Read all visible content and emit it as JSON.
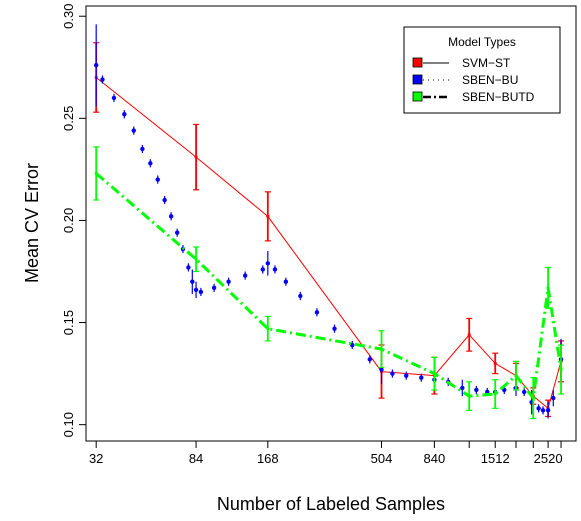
{
  "chart_data": {
    "type": "line",
    "xlabel": "Number of Labeled Samples",
    "ylabel": "Mean CV Error",
    "x_scale": "log",
    "xlim": [
      29,
      3300
    ],
    "ylim": [
      0.092,
      0.305
    ],
    "x_ticks": [
      32,
      84,
      168,
      504,
      840,
      1512,
      2520
    ],
    "x_minor_ticks": [
      1176,
      1848,
      2184,
      2856
    ],
    "y_ticks": [
      0.1,
      0.15,
      0.2,
      0.25,
      0.3
    ],
    "y_tick_labels": [
      "0.10",
      "0.15",
      "0.20",
      "0.25",
      "0.30"
    ],
    "grid": false,
    "legend": {
      "title": "Model Types",
      "position": "top-right",
      "entries": [
        "SVM−ST",
        "SBEN−BU",
        "SBEN−BUTD"
      ]
    },
    "series": [
      {
        "name": "SVM−ST",
        "color": "#ff0000",
        "marker_color": "#ff0000",
        "line": "solid",
        "x": [
          32,
          84,
          168,
          504,
          840,
          1176,
          1512,
          1848,
          2184,
          2520,
          2856
        ],
        "y": [
          0.27,
          0.231,
          0.202,
          0.126,
          0.124,
          0.144,
          0.13,
          0.124,
          0.114,
          0.108,
          0.131
        ],
        "err": [
          0.017,
          0.016,
          0.012,
          0.013,
          0.009,
          0.008,
          0.005,
          0.006,
          0.004,
          0.004,
          0.01
        ]
      },
      {
        "name": "SBEN−BU",
        "color": "#0000ff",
        "marker_color": "#0000ff",
        "line": "dotted",
        "x": [
          32,
          34,
          38,
          42,
          46,
          50,
          54,
          58,
          62,
          66,
          70,
          74,
          78,
          81,
          84,
          88,
          100,
          115,
          135,
          160,
          168,
          180,
          200,
          230,
          270,
          320,
          380,
          450,
          504,
          560,
          640,
          740,
          840,
          960,
          1100,
          1260,
          1400,
          1512,
          1650,
          1848,
          2000,
          2150,
          2300,
          2400,
          2520,
          2650,
          2856
        ],
        "y": [
          0.276,
          0.269,
          0.26,
          0.252,
          0.244,
          0.235,
          0.228,
          0.22,
          0.21,
          0.202,
          0.194,
          0.186,
          0.177,
          0.17,
          0.166,
          0.165,
          0.167,
          0.17,
          0.173,
          0.176,
          0.179,
          0.176,
          0.17,
          0.163,
          0.155,
          0.147,
          0.139,
          0.132,
          0.127,
          0.125,
          0.124,
          0.123,
          0.122,
          0.121,
          0.118,
          0.117,
          0.116,
          0.116,
          0.117,
          0.118,
          0.116,
          0.111,
          0.108,
          0.107,
          0.107,
          0.113,
          0.132
        ],
        "err": [
          0.02,
          0.002,
          0.002,
          0.002,
          0.002,
          0.002,
          0.002,
          0.002,
          0.002,
          0.002,
          0.002,
          0.002,
          0.002,
          0.006,
          0.004,
          0.002,
          0.002,
          0.002,
          0.002,
          0.002,
          0.006,
          0.002,
          0.002,
          0.002,
          0.002,
          0.002,
          0.002,
          0.002,
          0.007,
          0.002,
          0.002,
          0.002,
          0.005,
          0.002,
          0.004,
          0.002,
          0.002,
          0.006,
          0.002,
          0.004,
          0.002,
          0.006,
          0.002,
          0.002,
          0.004,
          0.004,
          0.01
        ]
      },
      {
        "name": "SBEN−BUTD",
        "color": "#00ff00",
        "marker_color": "#00ff00",
        "line": "dashdot",
        "x": [
          32,
          84,
          168,
          504,
          840,
          1176,
          1512,
          1848,
          2184,
          2520,
          2856
        ],
        "y": [
          0.223,
          0.181,
          0.147,
          0.137,
          0.125,
          0.114,
          0.115,
          0.124,
          0.113,
          0.167,
          0.127
        ],
        "err": [
          0.013,
          0.006,
          0.006,
          0.009,
          0.008,
          0.007,
          0.007,
          0.007,
          0.01,
          0.01,
          0.012
        ]
      }
    ]
  }
}
